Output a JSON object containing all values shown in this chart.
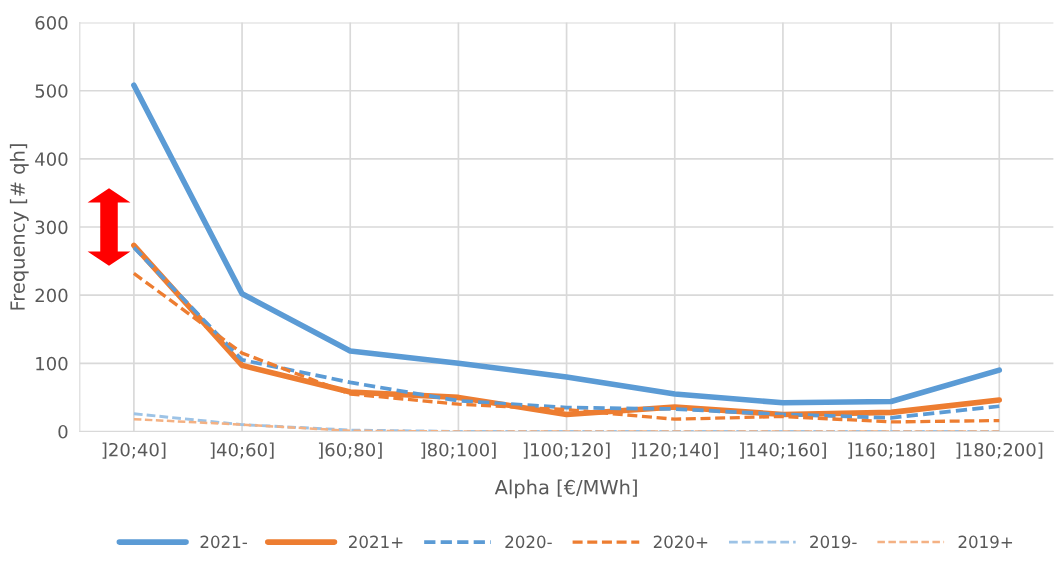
{
  "chart_data": {
    "type": "line",
    "xlabel": "Alpha [€/MWh]",
    "ylabel": "Frequency [# qh]",
    "categories": [
      "]20;40]",
      "]40;60]",
      "]60;80]",
      "]80;100]",
      "]100;120]",
      "]120;140]",
      "]140;160]",
      "]160;180]",
      "]180;200]"
    ],
    "series": [
      {
        "name": "2021-",
        "color": "#5b9bd5",
        "line_style": "solid",
        "values": [
          508,
          202,
          118,
          100,
          80,
          55,
          42,
          44,
          90
        ]
      },
      {
        "name": "2021+",
        "color": "#ed7d31",
        "line_style": "solid",
        "values": [
          273,
          97,
          58,
          50,
          25,
          36,
          25,
          28,
          46
        ]
      },
      {
        "name": "2020-",
        "color": "#5b9bd5",
        "line_style": "dashed",
        "values": [
          270,
          105,
          72,
          45,
          35,
          33,
          25,
          20,
          37
        ]
      },
      {
        "name": "2020+",
        "color": "#ed7d31",
        "line_style": "dashed",
        "values": [
          232,
          115,
          55,
          40,
          32,
          18,
          22,
          14,
          16
        ]
      },
      {
        "name": "2019-",
        "color": "#9dc3e6",
        "line_style": "dashed",
        "values": [
          26,
          10,
          2,
          0,
          0,
          0,
          0,
          0,
          0
        ]
      },
      {
        "name": "2019+",
        "color": "#f4b183",
        "line_style": "dashed",
        "values": [
          18,
          10,
          1,
          0,
          0,
          0,
          0,
          0,
          0
        ]
      }
    ],
    "ylim": [
      0,
      600
    ],
    "yticks": [
      0,
      100,
      200,
      300,
      400,
      500,
      600
    ],
    "grid": true,
    "legend": "bottom",
    "marker": "none"
  }
}
